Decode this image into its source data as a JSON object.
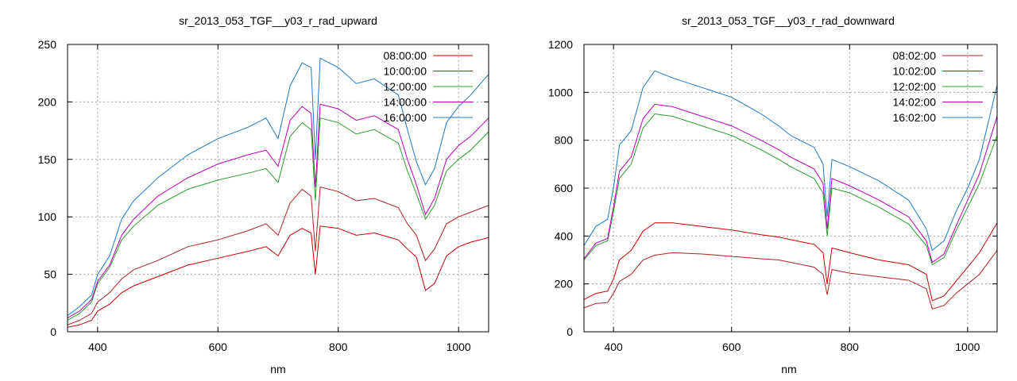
{
  "chart_data": [
    {
      "type": "line",
      "title": "sr_2013_053_TGF__y03_r_rad_upward",
      "xlabel": "nm",
      "ylabel": "",
      "xlim": [
        350,
        1050
      ],
      "ylim": [
        0,
        250
      ],
      "xticks": [
        400,
        600,
        800,
        1000
      ],
      "yticks": [
        0,
        50,
        100,
        150,
        200,
        250
      ],
      "grid": true,
      "legend": "top-right",
      "series": [
        {
          "name": "08:00:00",
          "color": "#cc0000",
          "x": [
            350,
            370,
            390,
            400,
            420,
            440,
            460,
            500,
            550,
            600,
            650,
            680,
            700,
            720,
            740,
            755,
            762,
            770,
            800,
            830,
            860,
            900,
            915,
            930,
            945,
            960,
            980,
            1000,
            1020,
            1050
          ],
          "y": [
            4,
            6,
            10,
            18,
            24,
            34,
            40,
            48,
            58,
            64,
            70,
            74,
            66,
            84,
            90,
            86,
            50,
            92,
            90,
            84,
            86,
            80,
            72,
            65,
            36,
            42,
            66,
            74,
            78,
            82
          ]
        },
        {
          "name": "10:00:00",
          "color": "#b22222",
          "x": [
            350,
            370,
            390,
            400,
            420,
            440,
            460,
            500,
            550,
            600,
            650,
            680,
            700,
            720,
            740,
            755,
            762,
            770,
            800,
            830,
            860,
            900,
            915,
            930,
            945,
            960,
            980,
            1000,
            1020,
            1050
          ],
          "y": [
            6,
            10,
            16,
            26,
            34,
            46,
            54,
            62,
            74,
            80,
            88,
            94,
            84,
            112,
            124,
            118,
            70,
            126,
            122,
            114,
            116,
            108,
            94,
            84,
            62,
            72,
            94,
            100,
            104,
            110
          ]
        },
        {
          "name": "12:00:00",
          "color": "#2e9e2e",
          "x": [
            350,
            370,
            390,
            400,
            420,
            440,
            460,
            500,
            550,
            600,
            650,
            680,
            700,
            720,
            740,
            755,
            762,
            770,
            800,
            830,
            860,
            900,
            915,
            930,
            945,
            960,
            980,
            1000,
            1020,
            1050
          ],
          "y": [
            10,
            16,
            26,
            42,
            56,
            80,
            92,
            110,
            124,
            132,
            138,
            142,
            130,
            170,
            182,
            176,
            114,
            186,
            182,
            172,
            176,
            164,
            140,
            120,
            98,
            110,
            140,
            150,
            158,
            174
          ]
        },
        {
          "name": "14:00:00",
          "color": "#bf00bf",
          "x": [
            350,
            370,
            390,
            400,
            420,
            440,
            460,
            500,
            550,
            600,
            650,
            680,
            700,
            720,
            740,
            755,
            762,
            770,
            800,
            830,
            860,
            900,
            915,
            930,
            945,
            960,
            980,
            1000,
            1020,
            1050
          ],
          "y": [
            12,
            18,
            28,
            44,
            58,
            84,
            98,
            118,
            134,
            146,
            154,
            158,
            144,
            184,
            196,
            190,
            126,
            198,
            194,
            184,
            188,
            176,
            150,
            128,
            102,
            116,
            150,
            162,
            170,
            186
          ]
        },
        {
          "name": "16:00:00",
          "color": "#1f78c8",
          "x": [
            350,
            370,
            390,
            400,
            420,
            440,
            460,
            500,
            550,
            600,
            650,
            680,
            700,
            720,
            740,
            755,
            762,
            770,
            800,
            830,
            860,
            900,
            915,
            930,
            945,
            960,
            980,
            1000,
            1020,
            1050
          ],
          "y": [
            14,
            22,
            32,
            50,
            66,
            98,
            114,
            134,
            154,
            168,
            178,
            186,
            168,
            214,
            234,
            230,
            150,
            238,
            230,
            216,
            220,
            206,
            176,
            148,
            128,
            142,
            182,
            196,
            206,
            224
          ]
        }
      ]
    },
    {
      "type": "line",
      "title": "sr_2013_053_TGF__y03_r_rad_downward",
      "xlabel": "nm",
      "ylabel": "",
      "xlim": [
        350,
        1050
      ],
      "ylim": [
        0,
        1200
      ],
      "xticks": [
        400,
        600,
        800,
        1000
      ],
      "yticks": [
        0,
        200,
        400,
        600,
        800,
        1000,
        1200
      ],
      "grid": true,
      "legend": "top-right",
      "series": [
        {
          "name": "08:02:00",
          "color": "#b22222",
          "x": [
            350,
            370,
            390,
            400,
            410,
            430,
            450,
            470,
            500,
            550,
            600,
            650,
            680,
            700,
            740,
            755,
            762,
            770,
            800,
            850,
            900,
            930,
            940,
            960,
            980,
            1000,
            1020,
            1050
          ],
          "y": [
            100,
            118,
            122,
            160,
            210,
            240,
            300,
            320,
            330,
            325,
            315,
            305,
            300,
            290,
            270,
            240,
            155,
            260,
            245,
            230,
            215,
            180,
            95,
            110,
            160,
            200,
            240,
            340
          ]
        },
        {
          "name": "10:02:00",
          "color": "#cc0000",
          "x": [
            350,
            370,
            390,
            400,
            410,
            430,
            450,
            470,
            500,
            550,
            600,
            650,
            680,
            700,
            740,
            755,
            762,
            770,
            800,
            850,
            900,
            930,
            940,
            960,
            980,
            1000,
            1020,
            1050
          ],
          "y": [
            135,
            160,
            170,
            220,
            300,
            340,
            420,
            455,
            455,
            440,
            425,
            405,
            395,
            385,
            365,
            330,
            200,
            350,
            330,
            300,
            280,
            240,
            130,
            150,
            210,
            270,
            330,
            455
          ]
        },
        {
          "name": "12:02:00",
          "color": "#2e9e2e",
          "x": [
            350,
            370,
            390,
            400,
            410,
            430,
            450,
            470,
            500,
            550,
            600,
            650,
            680,
            700,
            740,
            755,
            762,
            770,
            800,
            850,
            900,
            930,
            940,
            960,
            980,
            1000,
            1020,
            1050
          ],
          "y": [
            300,
            360,
            380,
            500,
            640,
            700,
            850,
            910,
            900,
            860,
            820,
            760,
            720,
            690,
            640,
            580,
            400,
            600,
            580,
            520,
            450,
            360,
            280,
            310,
            420,
            520,
            620,
            820
          ]
        },
        {
          "name": "14:02:00",
          "color": "#bf00bf",
          "x": [
            350,
            370,
            390,
            400,
            410,
            430,
            450,
            470,
            500,
            550,
            600,
            650,
            680,
            700,
            740,
            755,
            762,
            770,
            800,
            850,
            900,
            930,
            940,
            960,
            980,
            1000,
            1020,
            1050
          ],
          "y": [
            305,
            370,
            390,
            520,
            670,
            730,
            890,
            950,
            940,
            900,
            860,
            800,
            760,
            730,
            680,
            620,
            430,
            640,
            610,
            550,
            480,
            380,
            290,
            325,
            440,
            550,
            660,
            900
          ]
        },
        {
          "name": "16:02:00",
          "color": "#1f78c8",
          "x": [
            350,
            370,
            390,
            400,
            410,
            430,
            450,
            470,
            500,
            550,
            600,
            650,
            680,
            700,
            740,
            755,
            762,
            770,
            800,
            850,
            900,
            930,
            940,
            960,
            980,
            1000,
            1020,
            1050
          ],
          "y": [
            360,
            440,
            470,
            600,
            780,
            840,
            1020,
            1090,
            1060,
            1020,
            980,
            910,
            860,
            820,
            770,
            700,
            480,
            720,
            690,
            630,
            550,
            430,
            340,
            380,
            500,
            600,
            720,
            1030
          ]
        }
      ]
    }
  ]
}
